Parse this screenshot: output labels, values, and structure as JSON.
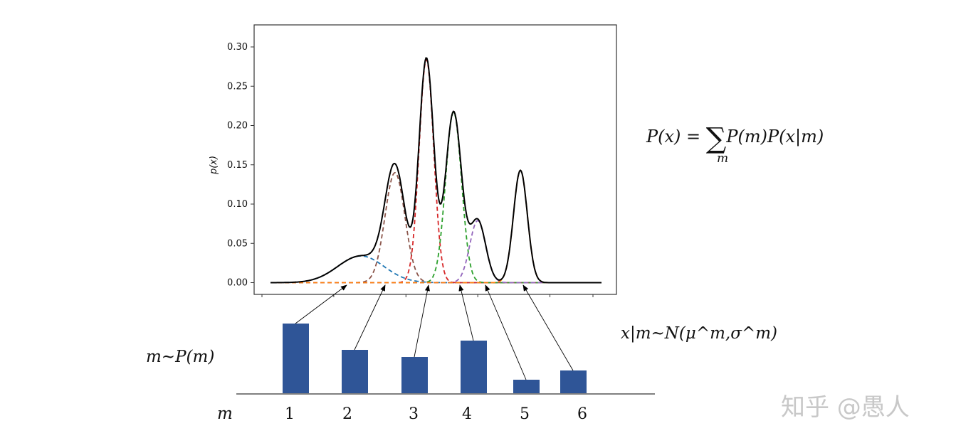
{
  "chart_data": {
    "type": "line",
    "ylabel": "p(x)",
    "ylim": [
      -0.015,
      0.33
    ],
    "xlim": [
      0,
      10
    ],
    "yticks": [
      "0.00",
      "0.05",
      "0.10",
      "0.15",
      "0.20",
      "0.25",
      "0.30"
    ],
    "components": [
      {
        "name": "m=1",
        "color": "#1f77b4",
        "mu": 2.73,
        "sigma": 0.7,
        "peak": 0.034
      },
      {
        "name": "m=2",
        "color": "#8c564b",
        "mu": 3.76,
        "sigma": 0.3,
        "peak": 0.14
      },
      {
        "name": "m=3",
        "color": "#d62728",
        "mu": 4.71,
        "sigma": 0.22,
        "peak": 0.284
      },
      {
        "name": "m=4",
        "color": "#2ca02c",
        "mu": 5.53,
        "sigma": 0.24,
        "peak": 0.217
      },
      {
        "name": "m=5",
        "color": "#9467bd",
        "mu": 6.26,
        "sigma": 0.24,
        "peak": 0.079
      },
      {
        "name": "m=6",
        "color": "#ff7f0e",
        "mu": 7.55,
        "sigma": 0.21,
        "peak": 0.143
      }
    ],
    "mixture_color": "#000000"
  },
  "prior_bars": {
    "color": "#2f5597",
    "categories": [
      "1",
      "2",
      "3",
      "4",
      "5",
      "6"
    ],
    "values": [
      0.98,
      0.61,
      0.51,
      0.74,
      0.19,
      0.32
    ]
  },
  "labels": {
    "m_axis": "m",
    "prior": "m~P(m)",
    "likelihood": "x|m~N(μ^m,σ^m)",
    "mixture_lhs": "P(x) = ",
    "sum_symbol": "∑",
    "sum_index": "m",
    "mixture_rhs": "P(m)P(x|m)"
  },
  "watermark": "知乎 @愚人"
}
